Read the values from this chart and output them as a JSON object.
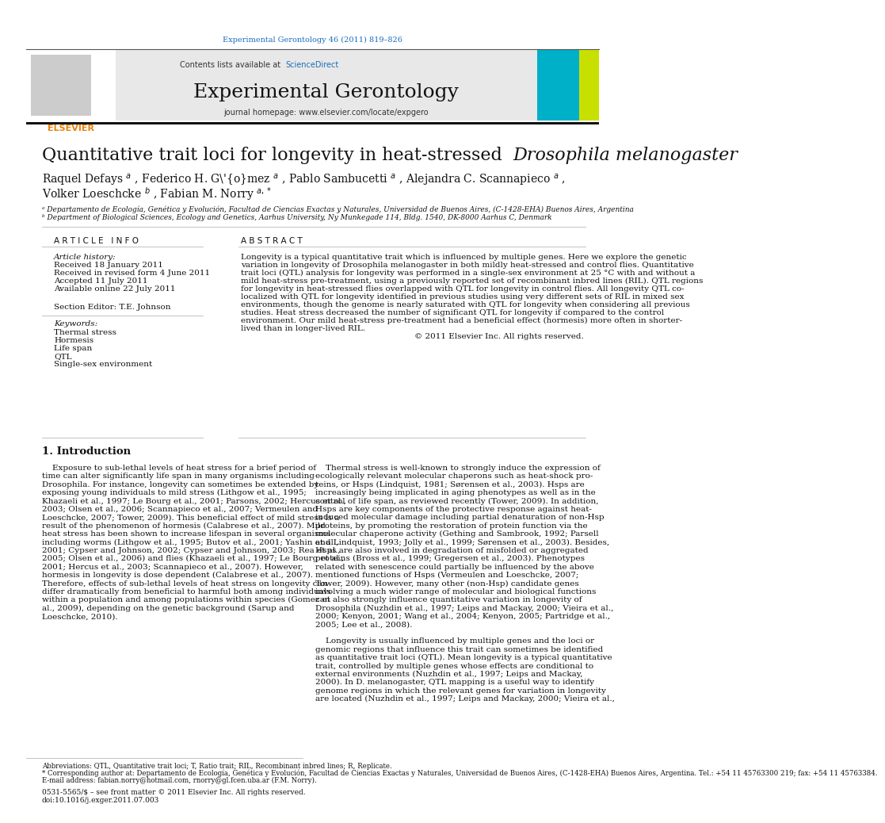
{
  "page_width": 9.92,
  "page_height": 13.23,
  "background_color": "#ffffff",
  "journal_ref": "Experimental Gerontology 46 (2011) 819–826",
  "journal_ref_color": "#1a6ebd",
  "header_bg": "#e8e8e8",
  "header_title": "Experimental Gerontology",
  "contents_text": "Contents lists available at ",
  "sciencedirect_text": "ScienceDirect",
  "sciencedirect_color": "#1a6ebd",
  "journal_homepage": "journal homepage: www.elsevier.com/locate/expgero",
  "article_title_normal": "Quantitative trait loci for longevity in heat-stressed ",
  "article_title_italic": "Drosophila melanogaster",
  "affil_a": "ᵃ Departamento de Ecología, Genética y Evolución, Facultad de Ciencias Exactas y Naturales, Universidad de Buenos Aires, (C-1428-EHA) Buenos Aires, Argentina",
  "affil_b": "ᵇ Department of Biological Sciences, Ecology and Genetics, Aarhus University, Ny Munkegade 114, Bldg. 1540, DK-8000 Aarhus C, Denmark",
  "article_info_header": "A R T I C L E   I N F O",
  "abstract_header": "A B S T R A C T",
  "article_history_label": "Article history:",
  "received": "Received 18 January 2011",
  "received_revised": "Received in revised form 4 June 2011",
  "accepted": "Accepted 11 July 2011",
  "available": "Available online 22 July 2011",
  "section_editor_label": "Section Editor: T.E. Johnson",
  "keywords_label": "Keywords:",
  "keywords": [
    "Thermal stress",
    "Hormesis",
    "Life span",
    "QTL",
    "Single-sex environment"
  ],
  "copyright": "© 2011 Elsevier Inc. All rights reserved.",
  "intro_header": "1. Introduction",
  "footer_abbrev": "Abbreviations: QTL, Quantitative trait loci; T, Ratio trait; RIL, Recombinant inbred lines; R, Replicate.",
  "footer_corresponding": "* Corresponding author at: Departamento de Ecología, Genética y Evolución, Facultad de Ciencias Exactas y Naturales, Universidad de Buenos Aires, (C-1428-EHA) Buenos Aires, Argentina. Tel.: +54 11 45763300 219; fax: +54 11 45763384.",
  "footer_email": "E-mail address: fabian.norry@hotmail.com, rnorry@gl.fcen.uba.ar (F.M. Norry).",
  "footer_issn": "0531-5565/$ – see front matter © 2011 Elsevier Inc. All rights reserved.",
  "footer_doi": "doi:10.1016/j.exger.2011.07.003",
  "abstract_lines": [
    "Longevity is a typical quantitative trait which is influenced by multiple genes. Here we explore the genetic",
    "variation in longevity of Drosophila melanogaster in both mildly heat-stressed and control flies. Quantitative",
    "trait loci (QTL) analysis for longevity was performed in a single-sex environment at 25 °C with and without a",
    "mild heat-stress pre-treatment, using a previously reported set of recombinant inbred lines (RIL). QTL regions",
    "for longevity in heat-stressed flies overlapped with QTL for longevity in control flies. All longevity QTL co-",
    "localized with QTL for longevity identified in previous studies using very different sets of RIL in mixed sex",
    "environments, though the genome is nearly saturated with QTL for longevity when considering all previous",
    "studies. Heat stress decreased the number of significant QTL for longevity if compared to the control",
    "environment. Our mild heat-stress pre-treatment had a beneficial effect (hormesis) more often in shorter-",
    "lived than in longer-lived RIL."
  ],
  "intro_col1_lines": [
    "    Exposure to sub-lethal levels of heat stress for a brief period of",
    "time can alter significantly life span in many organisms including",
    "Drosophila. For instance, longevity can sometimes be extended by",
    "exposing young individuals to mild stress (Lithgow et al., 1995;",
    "Khazaeli et al., 1997; Le Bourg et al., 2001; Parsons, 2002; Hercus et al.,",
    "2003; Olsen et al., 2006; Scannapieco et al., 2007; Vermeulen and",
    "Loeschcke, 2007; Tower, 2009). This beneficial effect of mild stress is a",
    "result of the phenomenon of hormesis (Calabrese et al., 2007). Mild",
    "heat stress has been shown to increase lifespan in several organisms",
    "including worms (Lithgow et al., 1995; Butov et al., 2001; Yashin et al.,",
    "2001; Cypser and Johnson, 2002; Cypser and Johnson, 2003; Rea et al.,",
    "2005; Olsen et al., 2006) and flies (Khazaeli et al., 1997; Le Bourg et al.,",
    "2001; Hercus et al., 2003; Scannapieco et al., 2007). However,",
    "hormesis in longevity is dose dependent (Calabrese et al., 2007).",
    "Therefore, effects of sub-lethal levels of heat stress on longevity can",
    "differ dramatically from beneficial to harmful both among individuals",
    "within a population and among populations within species (Gomez et",
    "al., 2009), depending on the genetic background (Sarup and",
    "Loeschcke, 2010)."
  ],
  "intro_col2_lines": [
    "    Thermal stress is well-known to strongly induce the expression of",
    "ecologically relevant molecular chaperons such as heat-shock pro-",
    "teins, or Hsps (Lindquist, 1981; Sørensen et al., 2003). Hsps are",
    "increasingly being implicated in aging phenotypes as well as in the",
    "control of life span, as reviewed recently (Tower, 2009). In addition,",
    "Hsps are key components of the protective response against heat-",
    "induced molecular damage including partial denaturation of non-Hsp",
    "proteins, by promoting the restoration of protein function via the",
    "molecular chaperone activity (Gething and Sambrook, 1992; Parsell",
    "and Lindquist, 1993; Jolly et al., 1999; Sørensen et al., 2003). Besides,",
    "Hsps are also involved in degradation of misfolded or aggregated",
    "proteins (Bross et al., 1999; Gregersen et al., 2003). Phenotypes",
    "related with senescence could partially be influenced by the above",
    "mentioned functions of Hsps (Vermeulen and Loeschcke, 2007;",
    "Tower, 2009). However, many other (non-Hsp) candidate genes",
    "involving a much wider range of molecular and biological functions",
    "can also strongly influence quantitative variation in longevity of",
    "Drosophila (Nuzhdin et al., 1997; Leips and Mackay, 2000; Vieira et al.,",
    "2000; Kenyon, 2001; Wang et al., 2004; Kenyon, 2005; Partridge et al.,",
    "2005; Lee et al., 2008)."
  ],
  "second_para_right_lines": [
    "    Longevity is usually influenced by multiple genes and the loci or",
    "genomic regions that influence this trait can sometimes be identified",
    "as quantitative trait loci (QTL). Mean longevity is a typical quantitative",
    "trait, controlled by multiple genes whose effects are conditional to",
    "external environments (Nuzhdin et al., 1997; Leips and Mackay,",
    "2000). In D. melanogaster, QTL mapping is a useful way to identify",
    "genome regions in which the relevant genes for variation in longevity",
    "are located (Nuzhdin et al., 1997; Leips and Mackay, 2000; Vieira et al.,"
  ]
}
